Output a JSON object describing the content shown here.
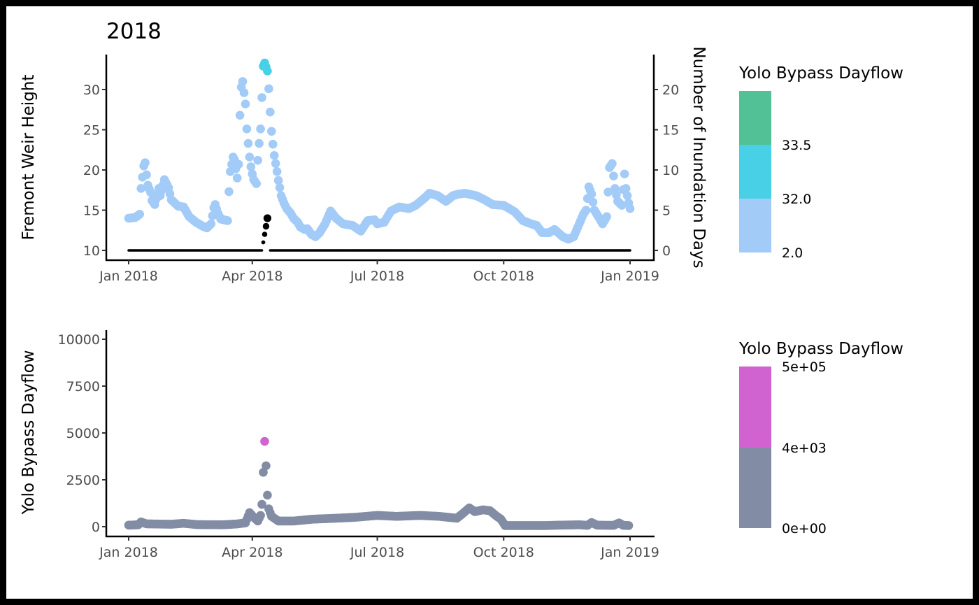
{
  "chart_data": [
    {
      "type": "scatter",
      "title": "2018",
      "xlabel": "",
      "ylabel": "Fremont Weir Height",
      "ylabel_right": "Number of Inundation Days",
      "x_ticks": [
        "Jan 2018",
        "Apr 2018",
        "Jul 2018",
        "Oct 2018",
        "Jan 2019"
      ],
      "y_ticks": [
        "10",
        "15",
        "20",
        "25",
        "30"
      ],
      "y_right_ticks": [
        "0",
        "5",
        "10",
        "15",
        "20"
      ],
      "ylim": [
        8.8,
        34.3
      ],
      "y_right_lim": [
        -1.2,
        24.3
      ],
      "xlim": [
        "2017-12-18",
        "2019-01-18"
      ],
      "grid": false,
      "legend": {
        "position": "right",
        "title": "Yolo Bypass Dayflow",
        "bins": [
          {
            "color": "#A3CBF8",
            "label": ""
          },
          {
            "color": "#48D1E6",
            "label": ""
          },
          {
            "color": "#52C196",
            "label": ""
          }
        ],
        "labels": [
          "2.0",
          "32.0",
          "33.5"
        ]
      },
      "color_low": "#A3CBF8",
      "color_high": "#48D1E6",
      "color_threshold": 32.0,
      "series": [
        {
          "role": "Fremont Weir Height",
          "points": [
            [
              "2018-01-01",
              14.0
            ],
            [
              "2018-01-06",
              14.1
            ],
            [
              "2018-01-09",
              14.5
            ],
            [
              "2018-01-10",
              17.7
            ],
            [
              "2018-01-12",
              20.5
            ],
            [
              "2018-01-13",
              20.9
            ],
            [
              "2018-01-14",
              19.4
            ],
            [
              "2018-01-15",
              18.1
            ],
            [
              "2018-01-17",
              17.2
            ],
            [
              "2018-01-18",
              16.2
            ],
            [
              "2018-01-20",
              15.7
            ],
            [
              "2018-01-23",
              17.7
            ],
            [
              "2018-01-24",
              16.8
            ],
            [
              "2018-01-27",
              18.8
            ],
            [
              "2018-01-30",
              17.8
            ],
            [
              "2018-02-01",
              16.3
            ],
            [
              "2018-02-06",
              15.5
            ],
            [
              "2018-02-10",
              15.4
            ],
            [
              "2018-02-14",
              14.2
            ],
            [
              "2018-02-19",
              13.5
            ],
            [
              "2018-02-24",
              13.0
            ],
            [
              "2018-02-27",
              12.8
            ],
            [
              "2018-03-02",
              13.3
            ],
            [
              "2018-03-04",
              15.3
            ],
            [
              "2018-03-05",
              15.7
            ],
            [
              "2018-03-07",
              14.6
            ],
            [
              "2018-03-09",
              13.9
            ],
            [
              "2018-03-14",
              13.7
            ],
            [
              "2018-03-15",
              17.3
            ],
            [
              "2018-03-16",
              19.8
            ],
            [
              "2018-03-18",
              21.6
            ],
            [
              "2018-03-19",
              21.3
            ],
            [
              "2018-03-21",
              19.0
            ],
            [
              "2018-03-22",
              20.7
            ],
            [
              "2018-03-23",
              26.8
            ],
            [
              "2018-03-24",
              30.3
            ],
            [
              "2018-03-25",
              31.0
            ],
            [
              "2018-03-27",
              28.2
            ],
            [
              "2018-03-28",
              25.1
            ],
            [
              "2018-03-29",
              23.3
            ],
            [
              "2018-03-30",
              21.6
            ],
            [
              "2018-03-31",
              20.4
            ],
            [
              "2018-04-01",
              19.5
            ],
            [
              "2018-04-02",
              18.8
            ],
            [
              "2018-04-04",
              18.3
            ],
            [
              "2018-04-05",
              21.2
            ],
            [
              "2018-04-06",
              23.3
            ],
            [
              "2018-04-07",
              25.1
            ],
            [
              "2018-04-08",
              29.0
            ],
            [
              "2018-04-09",
              32.9
            ],
            [
              "2018-04-10",
              33.3
            ],
            [
              "2018-04-12",
              32.3
            ],
            [
              "2018-04-13",
              30.1
            ],
            [
              "2018-04-14",
              27.2
            ],
            [
              "2018-04-15",
              24.8
            ],
            [
              "2018-04-16",
              23.2
            ],
            [
              "2018-04-17",
              21.8
            ],
            [
              "2018-04-18",
              20.8
            ],
            [
              "2018-04-19",
              19.8
            ],
            [
              "2018-04-20",
              18.7
            ],
            [
              "2018-04-21",
              17.8
            ],
            [
              "2018-04-22",
              16.8
            ],
            [
              "2018-04-24",
              15.9
            ],
            [
              "2018-04-26",
              15.2
            ],
            [
              "2018-04-29",
              14.6
            ],
            [
              "2018-05-01",
              14.0
            ],
            [
              "2018-05-04",
              13.5
            ],
            [
              "2018-05-06",
              12.9
            ],
            [
              "2018-05-09",
              12.6
            ],
            [
              "2018-05-11",
              12.7
            ],
            [
              "2018-05-14",
              12.0
            ],
            [
              "2018-05-17",
              11.7
            ],
            [
              "2018-05-20",
              12.2
            ],
            [
              "2018-05-24",
              13.3
            ],
            [
              "2018-05-28",
              14.9
            ],
            [
              "2018-06-01",
              14.0
            ],
            [
              "2018-06-06",
              13.3
            ],
            [
              "2018-06-13",
              13.1
            ],
            [
              "2018-06-19",
              12.4
            ],
            [
              "2018-06-24",
              13.7
            ],
            [
              "2018-06-29",
              13.8
            ],
            [
              "2018-07-01",
              13.3
            ],
            [
              "2018-07-06",
              13.5
            ],
            [
              "2018-07-11",
              14.9
            ],
            [
              "2018-07-17",
              15.4
            ],
            [
              "2018-07-24",
              15.2
            ],
            [
              "2018-07-29",
              15.6
            ],
            [
              "2018-08-05",
              16.6
            ],
            [
              "2018-08-08",
              17.1
            ],
            [
              "2018-08-14",
              16.8
            ],
            [
              "2018-08-20",
              16.1
            ],
            [
              "2018-08-25",
              16.8
            ],
            [
              "2018-08-29",
              17.0
            ],
            [
              "2018-09-03",
              17.1
            ],
            [
              "2018-09-11",
              16.8
            ],
            [
              "2018-09-17",
              16.3
            ],
            [
              "2018-09-23",
              15.7
            ],
            [
              "2018-10-01",
              15.6
            ],
            [
              "2018-10-09",
              14.8
            ],
            [
              "2018-10-15",
              13.7
            ],
            [
              "2018-10-21",
              13.3
            ],
            [
              "2018-10-25",
              13.1
            ],
            [
              "2018-10-29",
              12.2
            ],
            [
              "2018-11-03",
              12.2
            ],
            [
              "2018-11-07",
              12.6
            ],
            [
              "2018-11-13",
              11.7
            ],
            [
              "2018-11-17",
              11.4
            ],
            [
              "2018-11-21",
              11.7
            ],
            [
              "2018-11-25",
              13.3
            ],
            [
              "2018-11-28",
              14.5
            ],
            [
              "2018-11-30",
              15.0
            ],
            [
              "2018-12-02",
              17.9
            ],
            [
              "2018-12-04",
              17.0
            ],
            [
              "2018-12-06",
              15.0
            ],
            [
              "2018-12-10",
              13.9
            ],
            [
              "2018-12-12",
              13.3
            ],
            [
              "2018-12-15",
              14.2
            ],
            [
              "2018-12-17",
              20.3
            ],
            [
              "2018-12-19",
              20.8
            ],
            [
              "2018-12-21",
              17.7
            ],
            [
              "2018-12-23",
              16.1
            ],
            [
              "2018-12-26",
              15.6
            ],
            [
              "2018-12-28",
              19.5
            ],
            [
              "2018-12-29",
              17.7
            ],
            [
              "2018-12-31",
              15.9
            ],
            [
              "2019-01-01",
              15.2
            ]
          ]
        },
        {
          "role": "Number of Inundation Days",
          "color": "#000000",
          "zero_ranges": [
            [
              "2018-01-01",
              "2018-04-08"
            ],
            [
              "2018-04-14",
              "2019-01-01"
            ]
          ],
          "points": [
            [
              "2018-04-09",
              1
            ],
            [
              "2018-04-10",
              2
            ],
            [
              "2018-04-11",
              3
            ],
            [
              "2018-04-12",
              4
            ]
          ]
        }
      ]
    },
    {
      "type": "scatter",
      "title": "",
      "xlabel": "",
      "ylabel": "Yolo Bypass Dayflow",
      "x_ticks": [
        "Jan 2018",
        "Apr 2018",
        "Jul 2018",
        "Oct 2018",
        "Jan 2019"
      ],
      "y_ticks": [
        "0",
        "2500",
        "5000",
        "7500",
        "10000"
      ],
      "ylim": [
        -500,
        10500
      ],
      "grid": false,
      "legend": {
        "position": "right",
        "title": "Yolo Bypass Dayflow",
        "bins": [
          {
            "color": "#828DA5"
          },
          {
            "color": "#D063D0"
          }
        ],
        "labels": [
          "0e+00",
          "4e+03",
          "5e+05"
        ]
      },
      "color_low": "#828DA5",
      "color_high": "#D063D0",
      "color_threshold": 4000,
      "series": [
        {
          "role": "Yolo Bypass Dayflow",
          "points": [
            [
              "2018-01-01",
              80
            ],
            [
              "2018-01-08",
              100
            ],
            [
              "2018-01-10",
              250
            ],
            [
              "2018-01-14",
              150
            ],
            [
              "2018-02-01",
              130
            ],
            [
              "2018-02-10",
              180
            ],
            [
              "2018-02-20",
              110
            ],
            [
              "2018-03-10",
              100
            ],
            [
              "2018-03-20",
              140
            ],
            [
              "2018-03-27",
              200
            ],
            [
              "2018-03-30",
              750
            ],
            [
              "2018-04-02",
              500
            ],
            [
              "2018-04-05",
              300
            ],
            [
              "2018-04-07",
              600
            ],
            [
              "2018-04-08",
              1190
            ],
            [
              "2018-04-09",
              2900
            ],
            [
              "2018-04-10",
              4550
            ],
            [
              "2018-04-11",
              3250
            ],
            [
              "2018-04-12",
              1680
            ],
            [
              "2018-04-13",
              950
            ],
            [
              "2018-04-15",
              550
            ],
            [
              "2018-04-20",
              300
            ],
            [
              "2018-05-01",
              300
            ],
            [
              "2018-05-15",
              400
            ],
            [
              "2018-06-01",
              450
            ],
            [
              "2018-06-15",
              500
            ],
            [
              "2018-07-01",
              600
            ],
            [
              "2018-07-15",
              550
            ],
            [
              "2018-08-01",
              600
            ],
            [
              "2018-08-15",
              550
            ],
            [
              "2018-08-28",
              450
            ],
            [
              "2018-09-02",
              750
            ],
            [
              "2018-09-06",
              1000
            ],
            [
              "2018-09-10",
              800
            ],
            [
              "2018-09-16",
              900
            ],
            [
              "2018-09-21",
              850
            ],
            [
              "2018-09-26",
              550
            ],
            [
              "2018-09-29",
              400
            ],
            [
              "2018-10-02",
              60
            ],
            [
              "2018-11-01",
              60
            ],
            [
              "2018-11-10",
              80
            ],
            [
              "2018-11-25",
              100
            ],
            [
              "2018-12-01",
              70
            ],
            [
              "2018-12-04",
              220
            ],
            [
              "2018-12-08",
              80
            ],
            [
              "2018-12-20",
              70
            ],
            [
              "2018-12-24",
              200
            ],
            [
              "2018-12-27",
              70
            ],
            [
              "2018-12-31",
              60
            ]
          ]
        }
      ]
    }
  ]
}
